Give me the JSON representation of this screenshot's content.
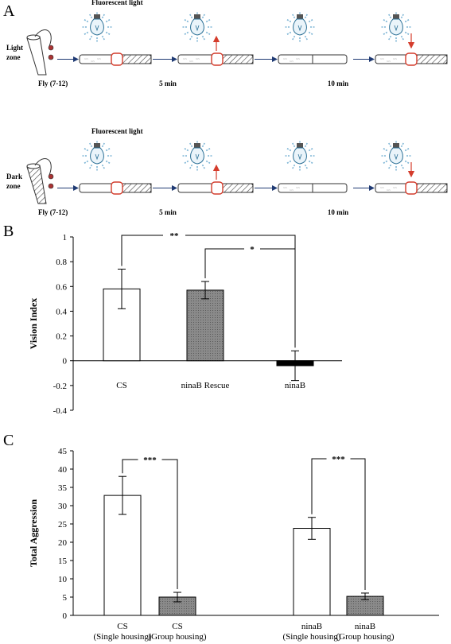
{
  "panel_a": {
    "letter": "A",
    "rows": [
      {
        "zone_label": "Light\nzone",
        "light_label": "Fluorescent light",
        "fly_label": "Fly (7-12)",
        "time1": "5 min",
        "time2": "10 min",
        "arrow_up_color": "#d43c2c",
        "arrow_down_color": "#d43c2c"
      },
      {
        "zone_label": "Dark\nzone",
        "light_label": "Fluorescent light",
        "fly_label": "Fly (7-12)",
        "time1": "5 min",
        "time2": "10 min",
        "arrow_up_color": "#d43c2c",
        "arrow_down_color": "#d43c2c"
      }
    ]
  },
  "chart_data": [
    {
      "panel": "B",
      "type": "bar",
      "ylabel": "Vision Index",
      "categories": [
        "CS",
        "ninaB Rescue",
        "ninaB"
      ],
      "values": [
        0.58,
        0.57,
        -0.04
      ],
      "errors": [
        0.16,
        0.07,
        0.12
      ],
      "bar_colors": [
        "#ffffff",
        "#808080",
        "#000000"
      ],
      "ylim": [
        -0.4,
        1.0
      ],
      "yticks": [
        "1",
        "0.8",
        "0.6",
        "0.4",
        "0.2",
        "0",
        "-0.2",
        "-0.4"
      ],
      "ytick_values": [
        1,
        0.8,
        0.6,
        0.4,
        0.2,
        0,
        -0.2,
        -0.4
      ],
      "significance": [
        {
          "from": 0,
          "to": 2,
          "label": "**"
        },
        {
          "from": 1,
          "to": 2,
          "label": "*"
        }
      ],
      "grid": false
    },
    {
      "panel": "C",
      "type": "bar",
      "ylabel": "Total Aggression",
      "categories": [
        "CS\n(Single housing)",
        "CS\n(Group housing)",
        "ninaB\n(Single housing)",
        "ninaB\n(Group housing)"
      ],
      "values": [
        32.8,
        5.0,
        23.8,
        5.2
      ],
      "errors": [
        5.2,
        1.3,
        3.0,
        0.9
      ],
      "bar_colors": [
        "#ffffff",
        "#808080",
        "#ffffff",
        "#808080"
      ],
      "ylim": [
        0,
        45
      ],
      "yticks": [
        "45",
        "40",
        "35",
        "30",
        "25",
        "20",
        "15",
        "10",
        "5",
        "0"
      ],
      "ytick_values": [
        45,
        40,
        35,
        30,
        25,
        20,
        15,
        10,
        5,
        0
      ],
      "significance": [
        {
          "from": 0,
          "to": 1,
          "label": "***"
        },
        {
          "from": 2,
          "to": 3,
          "label": "***"
        }
      ],
      "grid": false
    }
  ]
}
